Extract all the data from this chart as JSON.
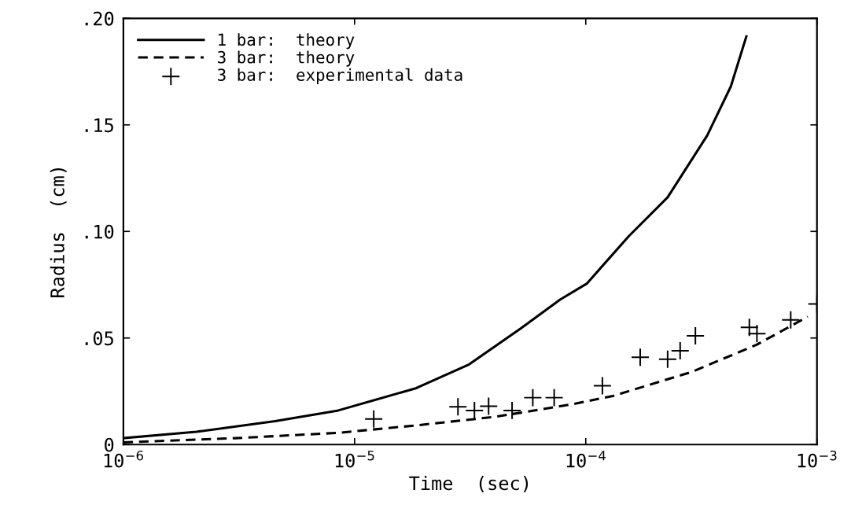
{
  "chart_data": {
    "type": "line",
    "xlabel": "Time  (sec)",
    "ylabel": "Radius  (cm)",
    "log": "x",
    "legend": "top left",
    "grid": false,
    "xlim": [
      1e-06,
      0.001
    ],
    "xticks": [
      {
        "value": 1e-06,
        "label": "10$^{−6}$"
      },
      {
        "value": 1e-05,
        "label": "10$^{−5}$"
      },
      {
        "value": 0.0001,
        "label": "10$^{−4}$"
      },
      {
        "value": 0.001,
        "label": "10$^{−3}$"
      }
    ],
    "ylim": [
      0,
      0.2
    ],
    "yticks": [
      {
        "value": 0,
        "label": "0"
      },
      {
        "value": 0.05,
        "label": ".05"
      },
      {
        "value": 0.1,
        "label": ".10"
      },
      {
        "value": 0.15,
        "label": ".15"
      },
      {
        "value": 0.2,
        "label": ".20"
      }
    ],
    "series": [
      {
        "name": "1 bar:  theory",
        "color": "#000000",
        "line_style": "solid",
        "marker": "none",
        "x": [
          1e-06,
          2.07e-06,
          4.53e-06,
          8.5e-06,
          1.85e-05,
          3.13e-05,
          5.24e-05,
          7.74e-05,
          0.000101,
          0.000153,
          0.000226,
          0.000335,
          0.000424,
          0.000495
        ],
        "values": [
          0.003,
          0.006,
          0.011,
          0.016,
          0.0265,
          0.0376,
          0.0545,
          0.068,
          0.0755,
          0.0976,
          0.116,
          0.145,
          0.168,
          0.1915
        ]
      },
      {
        "name": "3 bar:  theory",
        "color": "#000000",
        "line_style": "dashed",
        "marker": "none",
        "x": [
          1e-06,
          3.06e-06,
          8.5e-06,
          1.85e-05,
          4.05e-05,
          8.85e-05,
          0.000131,
          0.000286,
          0.000548,
          0.000912
        ],
        "values": [
          0.001,
          0.003,
          0.0055,
          0.009,
          0.013,
          0.019,
          0.0228,
          0.034,
          0.0468,
          0.06
        ]
      },
      {
        "name": "3 bar:  experimental data",
        "type": "scatter",
        "color": "#000000",
        "marker": "cross",
        "x": [
          1.21e-05,
          2.8e-05,
          3.3e-05,
          3.8e-05,
          4.8e-05,
          5.9e-05,
          7.3e-05,
          0.000118,
          0.000172,
          0.000226,
          0.000256,
          0.000298,
          0.00051,
          0.00055,
          0.00077,
          0.001
        ],
        "values": [
          0.012,
          0.0177,
          0.016,
          0.018,
          0.016,
          0.022,
          0.022,
          0.0276,
          0.041,
          0.04,
          0.044,
          0.051,
          0.055,
          0.052,
          0.0585,
          0.066
        ]
      }
    ]
  }
}
